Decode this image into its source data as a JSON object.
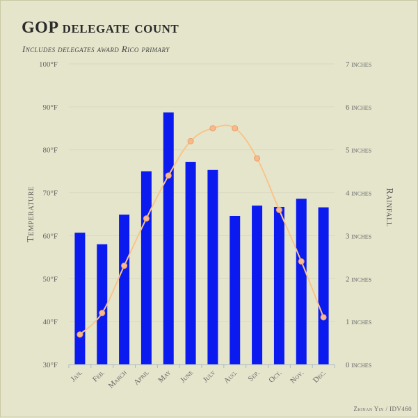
{
  "header": {
    "title": "GOP delegate count",
    "subtitle": "Includes delegates award Rico primary"
  },
  "footer": {
    "credit": "Zhinan Yin / IDV460"
  },
  "colors": {
    "bar": "#0b1bf0",
    "line": "#f9c48a",
    "point": "#f9b98a",
    "grid": "#d9d9c1",
    "background": "#e5e5cc"
  },
  "chart_data": {
    "type": "bar",
    "categories": [
      "Jan.",
      "Feb.",
      "March",
      "April",
      "May",
      "June",
      "July",
      "Aug.",
      "Sep.",
      "Oct.",
      "Nov.",
      "Dec."
    ],
    "series": [
      {
        "type": "bar",
        "axis": "left",
        "values": [
          60.7,
          58.0,
          64.9,
          75.0,
          88.7,
          77.2,
          75.3,
          64.6,
          67.0,
          66.7,
          68.6,
          66.6
        ]
      },
      {
        "type": "line",
        "axis": "right",
        "values": [
          0.7,
          1.2,
          2.3,
          3.4,
          4.4,
          5.2,
          5.5,
          5.5,
          4.8,
          3.6,
          2.4,
          1.1
        ]
      }
    ],
    "y_left": {
      "label": "Temperature",
      "range": [
        30,
        100
      ],
      "ticks": [
        "30°F",
        "40°F",
        "50°F",
        "60°F",
        "70°F",
        "80°F",
        "90°F",
        "100°F"
      ]
    },
    "y_right": {
      "label": "Rainfall",
      "range": [
        0,
        7
      ],
      "ticks": [
        "0 inches",
        "1 inches",
        "2 inches",
        "3 inches",
        "4 inches",
        "5 inches",
        "6 inches",
        "7 inches"
      ]
    },
    "grid": true
  }
}
